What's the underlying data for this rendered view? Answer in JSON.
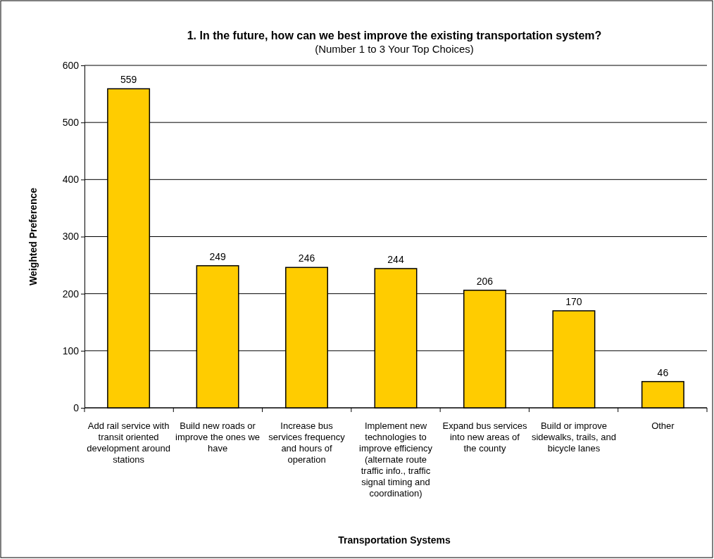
{
  "chart_data": {
    "type": "bar",
    "title": "1. In the future, how can we best improve the existing transportation system?",
    "subtitle": "(Number 1 to 3 Your Top Choices)",
    "xlabel": "Transportation Systems",
    "ylabel": "Weighted Preference",
    "categories": [
      "Add rail service with transit oriented development around stations",
      "Build new roads or improve the ones we have",
      "Increase bus services frequency and hours of operation",
      "Implement new technologies to improve efficiency (alternate route traffic info., traffic signal timing and coordination)",
      "Expand bus services into new areas of the county",
      "Build or improve sidewalks, trails, and bicycle lanes",
      "Other"
    ],
    "values": [
      559,
      249,
      246,
      244,
      206,
      170,
      46
    ],
    "color": "#ffcc00",
    "ylim": [
      0,
      600
    ],
    "yticks": [
      0,
      100,
      200,
      300,
      400,
      500,
      600
    ],
    "grid": "y",
    "data_labels": true
  }
}
